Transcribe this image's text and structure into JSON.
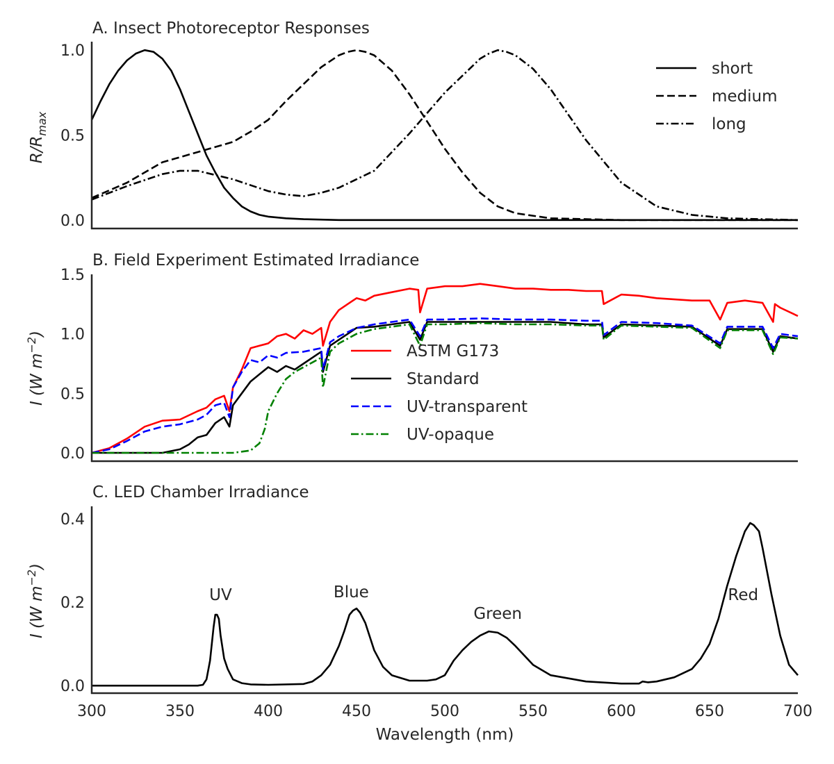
{
  "chart_data": [
    {
      "type": "line",
      "title": "A. Insect Photoreceptor Responses",
      "ylabel": "R/R_max",
      "ylabel_parts": {
        "base": "R/R",
        "sub": "max"
      },
      "xlim": [
        300,
        700
      ],
      "ylim": [
        -0.05,
        1.05
      ],
      "yticks": [
        0.0,
        0.5,
        1.0
      ],
      "ytick_labels": [
        "0.0",
        "0.5",
        "1.0"
      ],
      "legend_position": "top-right",
      "series": [
        {
          "name": "short",
          "color": "#000000",
          "dash": "solid",
          "x": [
            300,
            305,
            310,
            315,
            320,
            325,
            330,
            335,
            340,
            345,
            350,
            355,
            360,
            365,
            370,
            375,
            380,
            385,
            390,
            395,
            400,
            410,
            420,
            440,
            500,
            700
          ],
          "y": [
            0.59,
            0.7,
            0.8,
            0.88,
            0.94,
            0.98,
            1.0,
            0.99,
            0.95,
            0.88,
            0.77,
            0.64,
            0.51,
            0.38,
            0.28,
            0.19,
            0.13,
            0.08,
            0.05,
            0.03,
            0.02,
            0.01,
            0.005,
            0.0,
            0.0,
            0.0
          ]
        },
        {
          "name": "medium",
          "color": "#000000",
          "dash": "dashed",
          "x": [
            300,
            320,
            340,
            360,
            380,
            390,
            400,
            410,
            420,
            430,
            440,
            445,
            450,
            455,
            460,
            470,
            480,
            490,
            500,
            510,
            520,
            530,
            540,
            560,
            600,
            700
          ],
          "y": [
            0.13,
            0.22,
            0.34,
            0.4,
            0.46,
            0.52,
            0.59,
            0.7,
            0.8,
            0.9,
            0.97,
            0.99,
            1.0,
            0.99,
            0.97,
            0.88,
            0.74,
            0.58,
            0.42,
            0.28,
            0.16,
            0.08,
            0.04,
            0.01,
            0.0,
            0.0
          ]
        },
        {
          "name": "long",
          "color": "#000000",
          "dash": "dashdot",
          "x": [
            300,
            320,
            340,
            350,
            360,
            380,
            400,
            410,
            420,
            430,
            440,
            460,
            480,
            500,
            520,
            525,
            530,
            535,
            540,
            550,
            560,
            570,
            580,
            600,
            620,
            640,
            660,
            680,
            700
          ],
          "y": [
            0.12,
            0.2,
            0.27,
            0.29,
            0.29,
            0.24,
            0.17,
            0.15,
            0.14,
            0.16,
            0.19,
            0.29,
            0.51,
            0.75,
            0.95,
            0.98,
            1.0,
            0.99,
            0.97,
            0.89,
            0.77,
            0.62,
            0.47,
            0.22,
            0.08,
            0.03,
            0.01,
            0.005,
            0.0
          ]
        }
      ]
    },
    {
      "type": "line",
      "title": "B. Field Experiment Estimated Irradiance",
      "ylabel": "I (W m^-2)",
      "ylabel_parts": {
        "base": "I (W m",
        "sup": "−2",
        "end": ")"
      },
      "xlim": [
        300,
        700
      ],
      "ylim": [
        -0.07,
        1.5
      ],
      "yticks": [
        0.0,
        0.5,
        1.0,
        1.5
      ],
      "ytick_labels": [
        "0.0",
        "0.5",
        "1.0",
        "1.5"
      ],
      "legend_position": "center",
      "series": [
        {
          "name": "ASTM G173",
          "color": "#ff0000",
          "dash": "solid",
          "x": [
            300,
            310,
            320,
            330,
            340,
            350,
            360,
            365,
            370,
            375,
            378,
            380,
            385,
            390,
            395,
            400,
            405,
            410,
            415,
            420,
            425,
            430,
            431,
            435,
            440,
            445,
            450,
            455,
            460,
            470,
            480,
            485,
            486,
            490,
            500,
            510,
            520,
            530,
            540,
            550,
            560,
            570,
            580,
            589,
            590,
            600,
            610,
            620,
            640,
            650,
            656,
            660,
            670,
            680,
            686,
            687,
            690,
            700
          ],
          "y": [
            0.0,
            0.04,
            0.12,
            0.22,
            0.27,
            0.28,
            0.35,
            0.38,
            0.45,
            0.48,
            0.35,
            0.55,
            0.7,
            0.88,
            0.9,
            0.92,
            0.98,
            1.0,
            0.96,
            1.03,
            1.0,
            1.05,
            0.9,
            1.1,
            1.2,
            1.25,
            1.3,
            1.28,
            1.32,
            1.35,
            1.38,
            1.37,
            1.18,
            1.38,
            1.4,
            1.4,
            1.42,
            1.4,
            1.38,
            1.38,
            1.37,
            1.37,
            1.36,
            1.36,
            1.25,
            1.33,
            1.32,
            1.3,
            1.28,
            1.28,
            1.12,
            1.26,
            1.28,
            1.26,
            1.1,
            1.25,
            1.22,
            1.15
          ]
        },
        {
          "name": "Standard",
          "color": "#000000",
          "dash": "solid",
          "x": [
            300,
            340,
            350,
            355,
            360,
            365,
            370,
            375,
            378,
            380,
            385,
            390,
            395,
            400,
            405,
            410,
            415,
            420,
            425,
            430,
            431,
            435,
            440,
            445,
            450,
            460,
            470,
            480,
            486,
            490,
            500,
            520,
            540,
            560,
            580,
            589,
            590,
            600,
            620,
            640,
            656,
            660,
            680,
            686,
            690,
            700
          ],
          "y": [
            0.0,
            0.0,
            0.03,
            0.07,
            0.13,
            0.15,
            0.25,
            0.3,
            0.22,
            0.4,
            0.5,
            0.6,
            0.66,
            0.72,
            0.68,
            0.73,
            0.7,
            0.75,
            0.8,
            0.85,
            0.68,
            0.9,
            0.95,
            1.0,
            1.05,
            1.06,
            1.08,
            1.1,
            0.95,
            1.1,
            1.1,
            1.1,
            1.1,
            1.1,
            1.08,
            1.08,
            0.97,
            1.08,
            1.07,
            1.06,
            0.9,
            1.04,
            1.04,
            0.85,
            0.98,
            0.96
          ]
        },
        {
          "name": "UV-transparent",
          "color": "#0000ff",
          "dash": "dashed",
          "x": [
            300,
            310,
            320,
            330,
            340,
            350,
            360,
            365,
            370,
            375,
            378,
            380,
            385,
            390,
            395,
            400,
            405,
            410,
            420,
            430,
            431,
            435,
            440,
            450,
            460,
            470,
            480,
            486,
            490,
            500,
            520,
            540,
            560,
            580,
            589,
            590,
            600,
            620,
            640,
            656,
            660,
            680,
            686,
            690,
            700
          ],
          "y": [
            0.0,
            0.03,
            0.1,
            0.18,
            0.22,
            0.24,
            0.28,
            0.32,
            0.4,
            0.42,
            0.3,
            0.55,
            0.68,
            0.78,
            0.76,
            0.82,
            0.8,
            0.84,
            0.85,
            0.88,
            0.7,
            0.93,
            0.98,
            1.05,
            1.08,
            1.1,
            1.12,
            0.98,
            1.12,
            1.12,
            1.13,
            1.12,
            1.12,
            1.11,
            1.11,
            0.99,
            1.1,
            1.09,
            1.07,
            0.92,
            1.06,
            1.06,
            0.88,
            1.0,
            0.98
          ]
        },
        {
          "name": "UV-opaque",
          "color": "#008000",
          "dash": "dashdot",
          "x": [
            300,
            380,
            390,
            395,
            398,
            400,
            405,
            410,
            415,
            420,
            425,
            430,
            431,
            435,
            440,
            450,
            460,
            470,
            480,
            486,
            490,
            500,
            520,
            540,
            560,
            580,
            589,
            590,
            600,
            620,
            640,
            656,
            660,
            680,
            686,
            690,
            700
          ],
          "y": [
            0.0,
            0.0,
            0.02,
            0.08,
            0.2,
            0.35,
            0.5,
            0.62,
            0.68,
            0.72,
            0.76,
            0.8,
            0.55,
            0.85,
            0.92,
            1.0,
            1.04,
            1.06,
            1.08,
            0.9,
            1.08,
            1.08,
            1.09,
            1.08,
            1.08,
            1.07,
            1.07,
            0.95,
            1.07,
            1.06,
            1.05,
            0.88,
            1.03,
            1.03,
            0.83,
            0.97,
            0.96
          ]
        }
      ]
    },
    {
      "type": "line",
      "title": "C. LED Chamber Irradiance",
      "xlabel": "Wavelength (nm)",
      "ylabel": "I (W m^-2)",
      "ylabel_parts": {
        "base": "I (W m",
        "sup": "−2",
        "end": ")"
      },
      "xlim": [
        300,
        700
      ],
      "ylim": [
        -0.018,
        0.43
      ],
      "yticks": [
        0.0,
        0.2,
        0.4
      ],
      "ytick_labels": [
        "0.0",
        "0.2",
        "0.4"
      ],
      "xticks": [
        300,
        350,
        400,
        450,
        500,
        550,
        600,
        650,
        700
      ],
      "xtick_labels": [
        "300",
        "350",
        "400",
        "450",
        "500",
        "550",
        "600",
        "650",
        "700"
      ],
      "annotations": [
        {
          "text": "UV",
          "x": 373,
          "y": 0.205
        },
        {
          "text": "Blue",
          "x": 447,
          "y": 0.212
        },
        {
          "text": "Green",
          "x": 530,
          "y": 0.16
        },
        {
          "text": "Red",
          "x": 669,
          "y": 0.205
        }
      ],
      "series": [
        {
          "color": "#000000",
          "dash": "solid",
          "x": [
            300,
            360,
            363,
            365,
            367,
            369,
            370,
            371,
            372,
            373,
            375,
            377,
            380,
            385,
            390,
            400,
            420,
            425,
            430,
            435,
            440,
            443,
            446,
            448,
            450,
            452,
            455,
            460,
            465,
            470,
            480,
            490,
            495,
            500,
            505,
            510,
            515,
            520,
            525,
            530,
            535,
            540,
            550,
            560,
            580,
            600,
            610,
            612,
            615,
            620,
            630,
            640,
            645,
            650,
            655,
            660,
            665,
            670,
            673,
            675,
            678,
            680,
            685,
            690,
            695,
            700
          ],
          "y": [
            0.0,
            0.0,
            0.002,
            0.015,
            0.06,
            0.14,
            0.17,
            0.17,
            0.16,
            0.12,
            0.065,
            0.04,
            0.015,
            0.006,
            0.003,
            0.002,
            0.004,
            0.01,
            0.025,
            0.05,
            0.095,
            0.13,
            0.17,
            0.18,
            0.185,
            0.175,
            0.15,
            0.085,
            0.045,
            0.025,
            0.012,
            0.012,
            0.015,
            0.025,
            0.06,
            0.085,
            0.105,
            0.12,
            0.13,
            0.127,
            0.115,
            0.095,
            0.05,
            0.025,
            0.01,
            0.005,
            0.005,
            0.01,
            0.008,
            0.01,
            0.02,
            0.04,
            0.065,
            0.1,
            0.16,
            0.24,
            0.31,
            0.37,
            0.39,
            0.385,
            0.37,
            0.33,
            0.22,
            0.12,
            0.05,
            0.025
          ]
        }
      ]
    }
  ]
}
